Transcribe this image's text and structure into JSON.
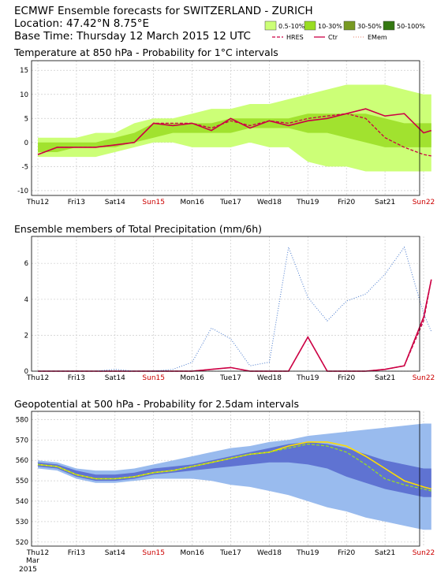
{
  "header": {
    "title": "ECMWF Ensemble forecasts for SWITZERLAND - ZURICH",
    "location": "Location:  47.42°N 8.75°E",
    "base_time": "Base Time: Thursday 12 March 2015 12 UTC"
  },
  "legend": {
    "prob_bins": [
      {
        "label": "0.5-10%",
        "color": "#ccff77"
      },
      {
        "label": "10-30%",
        "color": "#99dd22"
      },
      {
        "label": "30-50%",
        "color": "#779922"
      },
      {
        "label": "50-100%",
        "color": "#337711"
      }
    ],
    "lines": [
      {
        "label": "HRES",
        "color": "#cc0044",
        "style": "dashed"
      },
      {
        "label": "Ctr",
        "color": "#cc0044",
        "style": "solid"
      },
      {
        "label": "EMem",
        "color": "#ee9988",
        "style": "dotted"
      }
    ]
  },
  "x_axis": {
    "days": [
      {
        "label": "Thu12",
        "color": "#000000"
      },
      {
        "label": "Fri13",
        "color": "#000000"
      },
      {
        "label": "Sat14",
        "color": "#000000"
      },
      {
        "label": "Sun15",
        "color": "#cc0000"
      },
      {
        "label": "Mon16",
        "color": "#000000"
      },
      {
        "label": "Tue17",
        "color": "#000000"
      },
      {
        "label": "Wed18",
        "color": "#000000"
      },
      {
        "label": "Thu19",
        "color": "#000000"
      },
      {
        "label": "Fri20",
        "color": "#000000"
      },
      {
        "label": "Sat21",
        "color": "#000000"
      },
      {
        "label": "Sun22",
        "color": "#cc0000"
      }
    ],
    "month": "Mar",
    "year": "2015"
  },
  "chart_data": [
    {
      "type": "area",
      "title": "Temperature at 850 hPa - Probability for 1°C intervals",
      "ylim": [
        -11,
        17
      ],
      "yticks": [
        -10,
        -5,
        0,
        5,
        10,
        15
      ],
      "x_days": [
        0,
        0.5,
        1,
        1.5,
        2,
        2.5,
        3,
        3.5,
        4,
        4.5,
        5,
        5.5,
        6,
        6.5,
        7,
        7.5,
        8,
        8.5,
        9,
        9.5,
        10,
        10.2
      ],
      "band_outer_low": [
        -3,
        -3,
        -3,
        -3,
        -2,
        -1,
        0,
        0,
        -1,
        -1,
        -1,
        0,
        -1,
        -1,
        -4,
        -5,
        -5,
        -6,
        -6,
        -6,
        -6,
        -6
      ],
      "band_outer_high": [
        1,
        1,
        1,
        2,
        2,
        4,
        5,
        5,
        6,
        7,
        7,
        8,
        8,
        9,
        10,
        11,
        12,
        12,
        12,
        11,
        10,
        10
      ],
      "band_core_low": [
        -2,
        -2,
        -1,
        -1,
        -1,
        0,
        1,
        2,
        2,
        2,
        2,
        3,
        3,
        3,
        2,
        2,
        1,
        0,
        -1,
        -1,
        -1,
        -1
      ],
      "band_core_high": [
        0,
        0,
        0,
        0,
        1,
        2,
        4,
        4,
        4,
        4,
        5,
        5,
        5,
        5,
        6,
        6,
        6,
        6,
        5,
        4,
        4,
        4
      ],
      "series": [
        {
          "name": "Ctr",
          "values": [
            -2.5,
            -1,
            -1,
            -1,
            -0.5,
            0,
            4,
            3.5,
            4,
            2.5,
            5,
            3,
            4.5,
            3.5,
            4.5,
            5,
            6,
            7,
            5.5,
            6,
            2,
            2.5
          ]
        },
        {
          "name": "HRES",
          "values": [
            -2.5,
            -1,
            -1,
            -1,
            -0.5,
            0,
            4,
            4,
            4,
            3,
            4.5,
            3.5,
            4.5,
            4,
            5,
            5.5,
            6,
            5,
            1,
            -1,
            -2.5,
            -2.8
          ]
        }
      ]
    },
    {
      "type": "line",
      "title": "Ensemble members of Total Precipitation (mm/6h)",
      "ylim": [
        0,
        7.5
      ],
      "yticks": [
        0,
        2,
        4,
        6
      ],
      "x_days": [
        0,
        0.5,
        1,
        1.5,
        2,
        2.5,
        3,
        3.5,
        4,
        4.5,
        5,
        5.5,
        6,
        6.5,
        7,
        7.5,
        8,
        8.5,
        9,
        9.5,
        10,
        10.2
      ],
      "series": [
        {
          "name": "Ctr",
          "values": [
            0,
            0,
            0,
            0,
            0,
            0,
            0,
            0,
            0,
            0.1,
            0.2,
            0,
            0,
            0,
            1.9,
            0,
            0,
            0,
            0.1,
            0.3,
            3,
            5.1
          ]
        },
        {
          "name": "HRES",
          "values": [
            0,
            0,
            0,
            0,
            0,
            0,
            0,
            0,
            0,
            0.1,
            0.2,
            0,
            0,
            0,
            1.9,
            0,
            0,
            0,
            0.1,
            0.3,
            2.8,
            5.1
          ]
        },
        {
          "name": "EMem",
          "values": [
            0,
            0,
            0,
            0,
            0.1,
            0,
            0,
            0.1,
            0.5,
            2.4,
            1.8,
            0.3,
            0.5,
            6.9,
            4.1,
            2.8,
            3.9,
            4.3,
            5.4,
            6.9,
            3.2,
            2.2
          ]
        }
      ]
    },
    {
      "type": "area",
      "title": "Geopotential at 500 hPa - Probability for 2.5dam intervals",
      "ylim": [
        518,
        584
      ],
      "yticks": [
        520,
        530,
        540,
        550,
        560,
        570,
        580
      ],
      "x_days": [
        0,
        0.5,
        1,
        1.5,
        2,
        2.5,
        3,
        3.5,
        4,
        4.5,
        5,
        5.5,
        6,
        6.5,
        7,
        7.5,
        8,
        8.5,
        9,
        9.5,
        10,
        10.2
      ],
      "band_outer_low": [
        556,
        555,
        551,
        549,
        549,
        550,
        551,
        551,
        551,
        550,
        548,
        547,
        545,
        543,
        540,
        537,
        535,
        532,
        530,
        528,
        526,
        526
      ],
      "band_outer_high": [
        560,
        559,
        556,
        555,
        555,
        556,
        558,
        560,
        562,
        564,
        566,
        567,
        569,
        570,
        572,
        573,
        574,
        575,
        576,
        577,
        578,
        578
      ],
      "band_core_low": [
        557,
        556,
        552,
        550,
        550,
        551,
        553,
        554,
        555,
        556,
        557,
        558,
        559,
        559,
        558,
        556,
        552,
        549,
        546,
        544,
        542,
        542
      ],
      "band_core_high": [
        559,
        558,
        555,
        553,
        553,
        554,
        556,
        557,
        558,
        560,
        562,
        564,
        566,
        568,
        569,
        568,
        566,
        563,
        560,
        558,
        556,
        556
      ],
      "series": [
        {
          "name": "Ctr",
          "values": [
            558,
            557,
            553,
            551,
            551,
            552,
            554,
            555,
            557,
            559,
            561,
            563,
            564,
            567,
            569,
            569,
            567,
            562,
            556,
            550,
            547,
            546
          ]
        },
        {
          "name": "HRES",
          "values": [
            558,
            557,
            553,
            551,
            551,
            552,
            554,
            555,
            557,
            559,
            561,
            563,
            564,
            566,
            568,
            567,
            564,
            558,
            551,
            548,
            546,
            545
          ]
        }
      ]
    }
  ]
}
